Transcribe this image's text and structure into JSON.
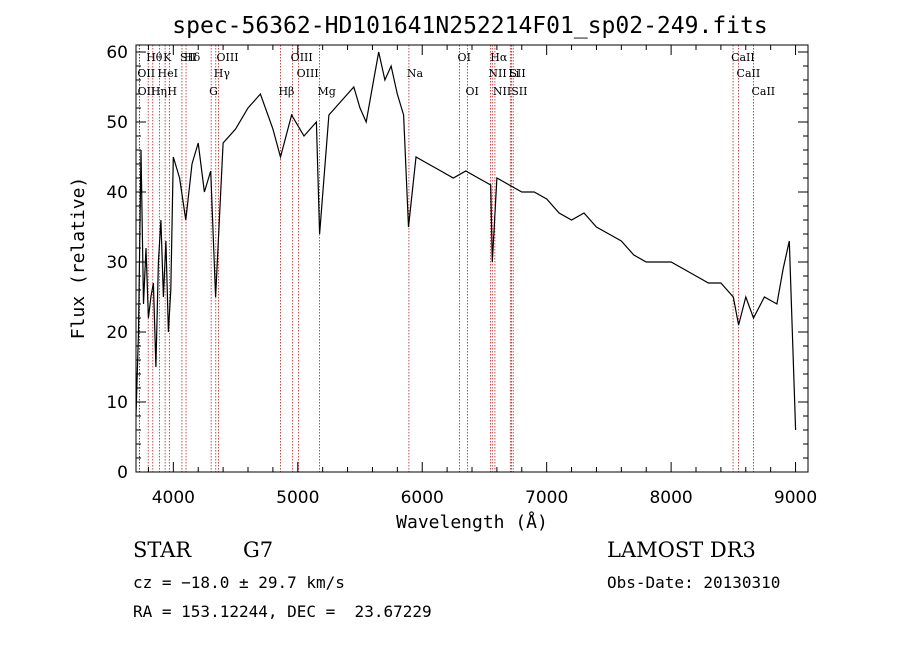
{
  "chart_data": {
    "type": "line",
    "title": "spec-56362-HD101641N252214F01_sp02-249.fits",
    "xlabel": "Wavelength (Å)",
    "ylabel": "Flux (relative)",
    "xlim": [
      3700,
      9100
    ],
    "ylim": [
      0,
      61
    ],
    "x_ticks": [
      4000,
      5000,
      6000,
      7000,
      8000,
      9000
    ],
    "x_tick_labels": [
      "4000",
      "5000",
      "6000",
      "7000",
      "8000",
      "9000"
    ],
    "y_ticks": [
      0,
      10,
      20,
      30,
      40,
      50,
      60
    ],
    "y_tick_labels": [
      "0",
      "10",
      "20",
      "30",
      "40",
      "50",
      "60"
    ],
    "series": [
      {
        "name": "spectrum",
        "x": [
          3700,
          3720,
          3740,
          3760,
          3780,
          3800,
          3820,
          3840,
          3860,
          3880,
          3900,
          3920,
          3940,
          3960,
          3980,
          4000,
          4050,
          4100,
          4150,
          4200,
          4250,
          4300,
          4340,
          4400,
          4500,
          4600,
          4700,
          4800,
          4861,
          4950,
          5050,
          5150,
          5175,
          5250,
          5350,
          5450,
          5500,
          5550,
          5600,
          5650,
          5700,
          5750,
          5800,
          5850,
          5890,
          5950,
          6050,
          6150,
          6250,
          6350,
          6450,
          6550,
          6563,
          6600,
          6700,
          6800,
          6900,
          7000,
          7100,
          7200,
          7300,
          7400,
          7500,
          7600,
          7700,
          7800,
          7900,
          8000,
          8100,
          8200,
          8300,
          8400,
          8500,
          8542,
          8600,
          8662,
          8750,
          8850,
          8900,
          8950,
          9000
        ],
        "y": [
          8,
          20,
          46,
          24,
          32,
          22,
          25,
          27,
          15,
          30,
          36,
          25,
          33,
          20,
          26,
          45,
          42,
          36,
          44,
          47,
          40,
          43,
          25,
          47,
          49,
          52,
          54,
          49,
          45,
          51,
          48,
          50,
          34,
          51,
          53,
          55,
          52,
          50,
          55,
          60,
          56,
          58,
          54,
          51,
          35,
          45,
          44,
          43,
          42,
          43,
          42,
          41,
          30,
          42,
          41,
          40,
          40,
          39,
          37,
          36,
          37,
          35,
          34,
          33,
          31,
          30,
          30,
          30,
          29,
          28,
          27,
          27,
          25,
          21,
          25,
          22,
          25,
          24,
          29,
          33,
          6
        ]
      }
    ],
    "line_colors": {
      "spectrum": "#000000",
      "lines": "#b22222",
      "axes": "#000000"
    },
    "spectral_lines": [
      {
        "name": "Hθ",
        "wl": 3798
      },
      {
        "name": "OII",
        "wl": 3727
      },
      {
        "name": "OII",
        "wl": 3729
      },
      {
        "name": "Hη",
        "wl": 3835
      },
      {
        "name": "HeI",
        "wl": 3889
      },
      {
        "name": "K",
        "wl": 3934
      },
      {
        "name": "H",
        "wl": 3968
      },
      {
        "name": "SII",
        "wl": 4069
      },
      {
        "name": "Hδ",
        "wl": 4102
      },
      {
        "name": "OIII",
        "wl": 4363
      },
      {
        "name": "Hγ",
        "wl": 4341
      },
      {
        "name": "G",
        "wl": 4304
      },
      {
        "name": "Hβ",
        "wl": 4861
      },
      {
        "name": "OIII",
        "wl": 4959
      },
      {
        "name": "OIII",
        "wl": 5007
      },
      {
        "name": "Mg",
        "wl": 5175
      },
      {
        "name": "Na",
        "wl": 5893
      },
      {
        "name": "OI",
        "wl": 6300
      },
      {
        "name": "OI",
        "wl": 6364
      },
      {
        "name": "Hα",
        "wl": 6563
      },
      {
        "name": "NII",
        "wl": 6548
      },
      {
        "name": "NII",
        "wl": 6584
      },
      {
        "name": "SII",
        "wl": 6717
      },
      {
        "name": "SII",
        "wl": 6731
      },
      {
        "name": "Li",
        "wl": 6708
      },
      {
        "name": "CaII",
        "wl": 8498
      },
      {
        "name": "CaII",
        "wl": 8542
      },
      {
        "name": "CaII",
        "wl": 8662
      }
    ],
    "line_label_tiers": [
      [
        "Hθ",
        "K",
        "Hδ",
        "OIII",
        "OIII",
        "OI",
        "Hα",
        "SII",
        "CaII"
      ],
      [
        "OII",
        "HeI",
        "SII",
        "Hγ",
        "OIII",
        "Na",
        "NII",
        "Li",
        "CaII"
      ],
      [
        "OII",
        "Hη",
        "H",
        "G",
        "Hβ",
        "Mg",
        "OI",
        "NII",
        "SII",
        "CaII"
      ]
    ]
  },
  "info": {
    "object_type": "STAR",
    "subclass": "G7",
    "survey": "LAMOST DR3",
    "redshift": "cz = −18.0 ± 29.7 km/s",
    "obs_date": "Obs-Date: 20130310",
    "coordinates": "RA = 153.12244, DEC =  23.67229"
  }
}
